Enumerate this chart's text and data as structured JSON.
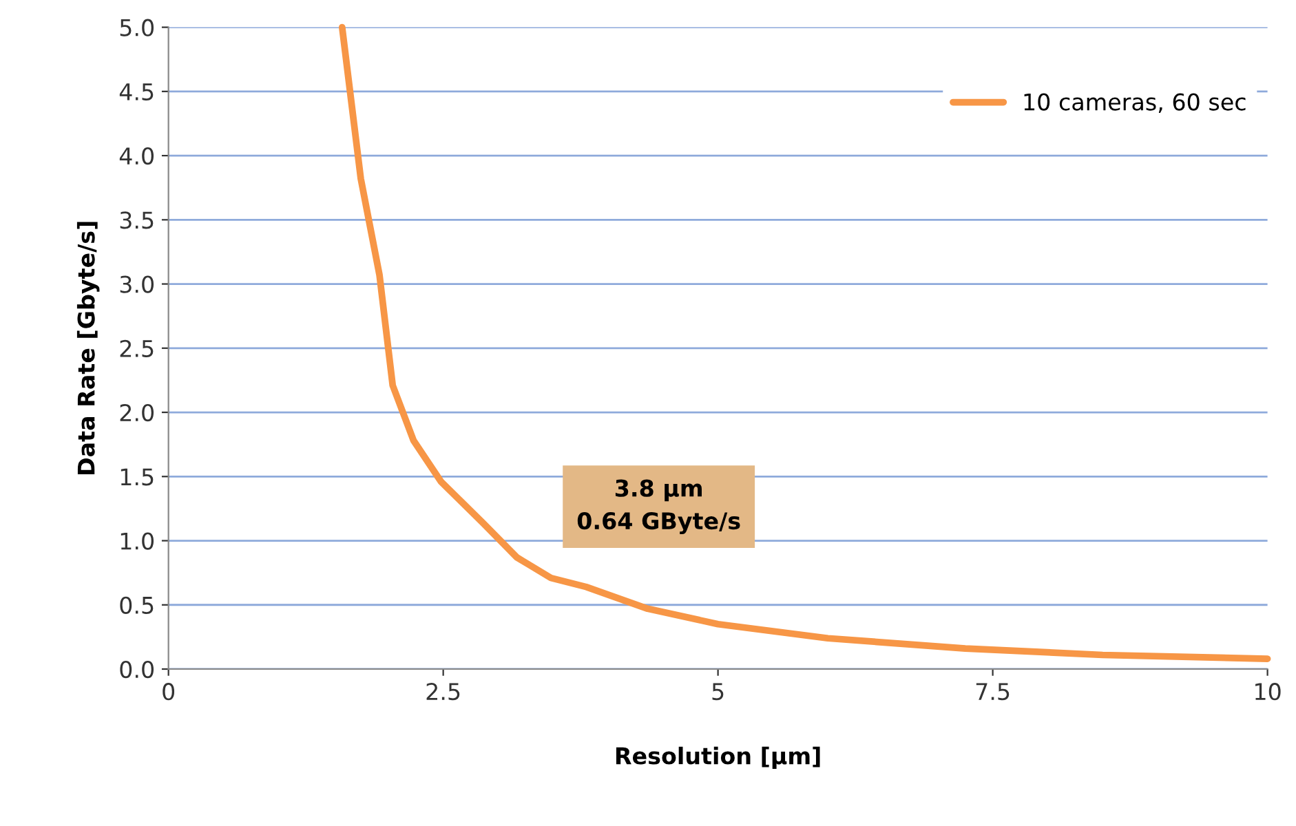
{
  "chart_data": {
    "type": "line",
    "xlabel": "Resolution [µm]",
    "ylabel": "Data Rate [Gbyte/s]",
    "series": [
      {
        "name": "10 cameras, 60 sec",
        "color": "#f79646",
        "x": [
          1.58,
          1.75,
          1.92,
          2.04,
          2.23,
          2.48,
          2.86,
          3.17,
          3.48,
          3.8,
          4.36,
          5.0,
          6.0,
          7.25,
          8.5,
          10
        ],
        "values": [
          5.0,
          3.82,
          3.07,
          2.21,
          1.78,
          1.46,
          1.14,
          0.87,
          0.71,
          0.64,
          0.47,
          0.35,
          0.24,
          0.16,
          0.11,
          0.08
        ]
      }
    ],
    "xlim": [
      0,
      10
    ],
    "xticks": [
      0,
      2.5,
      5,
      7.5,
      10
    ],
    "ylim": [
      0,
      5
    ],
    "yticks": [
      {
        "value": 0,
        "label": "0.0"
      },
      {
        "value": 0.5,
        "label": "0.5"
      },
      {
        "value": 1,
        "label": "1.0"
      },
      {
        "value": 1.5,
        "label": "1.5"
      },
      {
        "value": 2,
        "label": "2.0"
      },
      {
        "value": 2.5,
        "label": "2.5"
      },
      {
        "value": 3,
        "label": "3.0"
      },
      {
        "value": 3.5,
        "label": "3.5"
      },
      {
        "value": 4,
        "label": "4.0"
      },
      {
        "value": 4.5,
        "label": "4.5"
      },
      {
        "value": 5,
        "label": "5.0"
      }
    ],
    "grid": "y",
    "legend": "top right",
    "marker": "none",
    "line_style": "solid",
    "annotations": [
      {
        "text": "3.8 µm\n0.64 GByte/s",
        "x": 3.8,
        "y": 0.64
      }
    ]
  }
}
